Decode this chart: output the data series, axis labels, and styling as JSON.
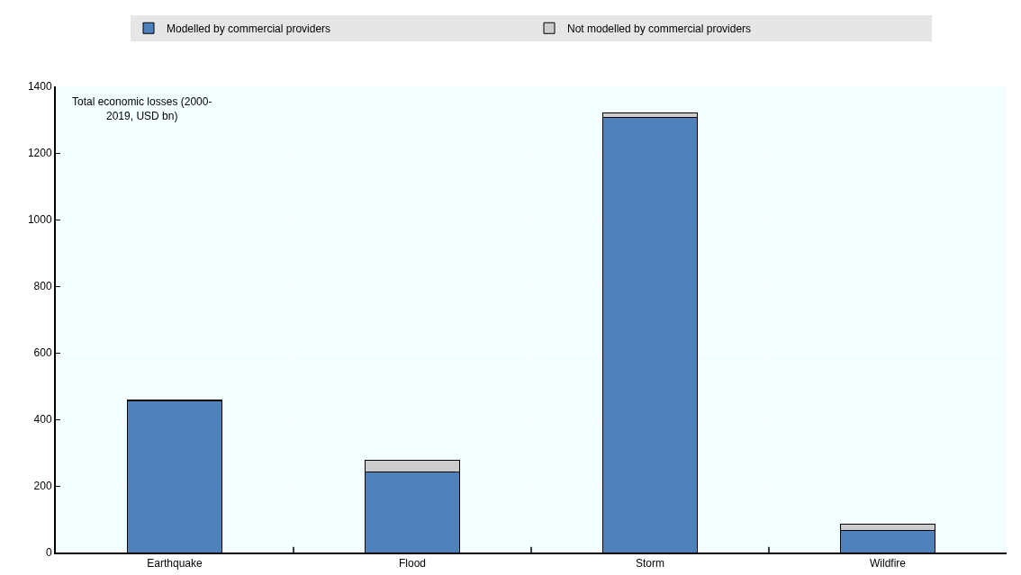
{
  "chart_data": {
    "type": "bar",
    "stacked": true,
    "categories": [
      "Earthquake",
      "Flood",
      "Storm",
      "Wildfire"
    ],
    "series": [
      {
        "name": "Modelled by commercial providers",
        "color": "#4f81bd",
        "values": [
          455,
          242,
          1307,
          67
        ]
      },
      {
        "name": "Not modelled by commercial providers",
        "color": "#cccccc",
        "values": [
          2,
          34,
          13,
          18
        ]
      }
    ],
    "ylim": [
      0,
      1400
    ],
    "yticks": [
      0,
      200,
      400,
      600,
      800,
      1000,
      1200,
      1400
    ],
    "grid": true,
    "legend": "top",
    "annotations": [
      "Total economic losses (2000-2019, USD bn)"
    ]
  }
}
